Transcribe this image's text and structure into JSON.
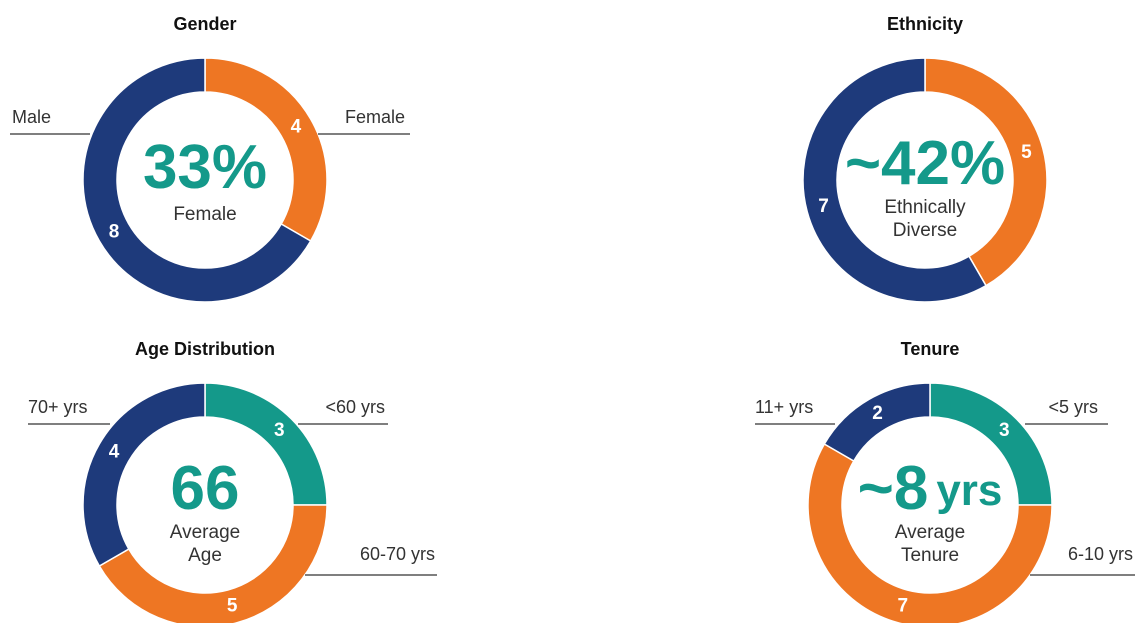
{
  "chart_data": [
    {
      "type": "donut",
      "title": "Gender",
      "categories": [
        "Female",
        "Male"
      ],
      "values": [
        4,
        8
      ],
      "colors": [
        "#ee7623",
        "#1e3a7b"
      ],
      "center_value": "33%",
      "center_text": [
        "Female"
      ]
    },
    {
      "type": "donut",
      "title": "Ethnicity",
      "categories": [
        null,
        null
      ],
      "values": [
        5,
        7
      ],
      "colors": [
        "#ee7623",
        "#1e3a7b"
      ],
      "center_value": "~42%",
      "center_text": [
        "Ethnically",
        "Diverse"
      ]
    },
    {
      "type": "donut",
      "title": "Age Distribution",
      "categories": [
        "<60 yrs",
        "60-70 yrs",
        "70+ yrs"
      ],
      "values": [
        3,
        5,
        4
      ],
      "colors": [
        "#14998a",
        "#ee7623",
        "#1e3a7b"
      ],
      "center_value": "66",
      "center_text": [
        "Average",
        "Age"
      ]
    },
    {
      "type": "donut",
      "title": "Tenure",
      "categories": [
        "<5 yrs",
        "6-10 yrs",
        "11+ yrs"
      ],
      "values": [
        3,
        7,
        2
      ],
      "colors": [
        "#14998a",
        "#ee7623",
        "#1e3a7b"
      ],
      "center_value": "~8",
      "center_unit": "yrs",
      "center_text": [
        "Average",
        "Tenure"
      ]
    }
  ]
}
